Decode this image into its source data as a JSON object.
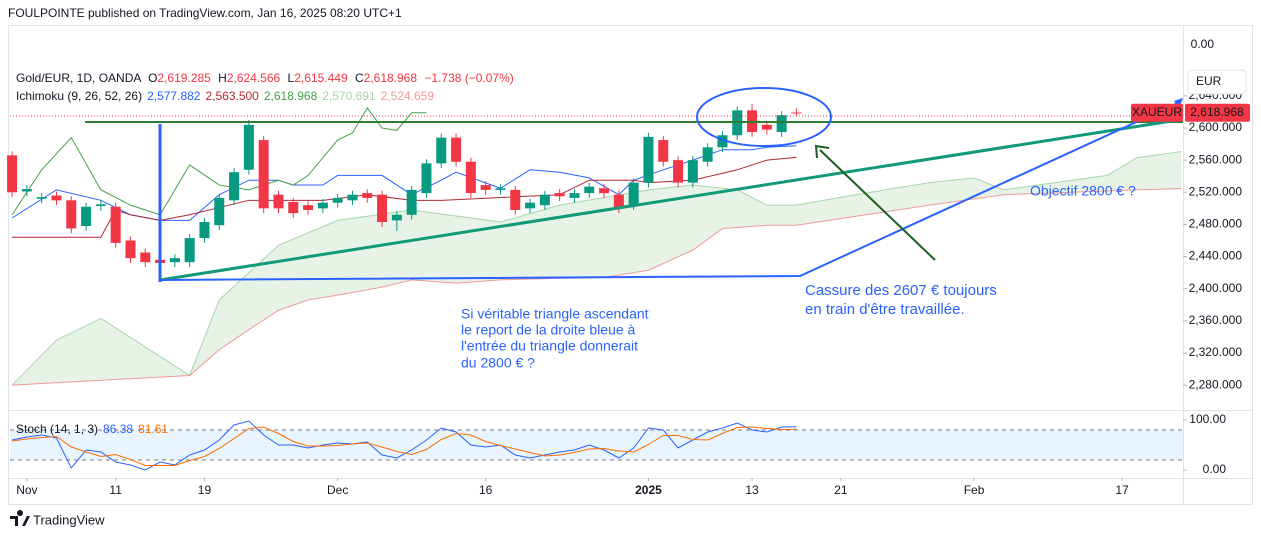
{
  "header": {
    "published": "FOULPOINTE published on TradingView.com, Jan 16, 2025 08:20 UTC+1",
    "symbol": "Gold/EUR, 1D, OANDA",
    "ohlc": [
      {
        "letter": "O",
        "value": "2,619.285"
      },
      {
        "letter": "H",
        "value": "2,624.566"
      },
      {
        "letter": "L",
        "value": "2,615.449"
      },
      {
        "letter": "C",
        "value": "2,618.968"
      }
    ],
    "change": "−1.738 (−0.07%)",
    "indicator": "Ichimoku (9, 26, 52, 26)",
    "indicator_values": [
      "2,577.882",
      "2,563.500",
      "2,618.968",
      "2,570.691",
      "2,524.659"
    ],
    "stoch": "Stoch (14, 1, 3)",
    "stoch_values": [
      "86.38",
      "81.61"
    ]
  },
  "annotations": {
    "breakout": [
      "Cassure des 2607 € toujours",
      "en train d'être travaillée."
    ],
    "triangle": [
      "Si véritable triangle ascendant",
      "le report de la droite bleue à",
      "l'entrée du triangle donnerait",
      "du 2800 € ?"
    ],
    "target": "Objectif 2800 € ?"
  },
  "footer": "TradingView",
  "chart_data": {
    "type": "candlestick",
    "up_color": "#089981",
    "down_color": "#f23645",
    "open": [
      2566,
      2521,
      2512,
      2516,
      2510,
      2478,
      2503,
      2502,
      2460,
      2445,
      2436,
      2433,
      2433,
      2463,
      2479,
      2510,
      2548,
      2585,
      2517,
      2508,
      2504,
      2500,
      2507,
      2510,
      2519,
      2517,
      2485,
      2492,
      2519,
      2556,
      2588,
      2558,
      2529,
      2523,
      2523,
      2500,
      2504,
      2519,
      2513,
      2519,
      2525,
      2517,
      2504,
      2532,
      2585,
      2560,
      2532,
      2558,
      2576,
      2591,
      2622,
      2604,
      2595,
      2619.285
    ],
    "high": [
      2571,
      2529,
      2519,
      2521,
      2515,
      2507,
      2510,
      2507,
      2465,
      2450,
      2441,
      2443,
      2468,
      2488,
      2518,
      2550,
      2610,
      2590,
      2522,
      2513,
      2509,
      2512,
      2518,
      2522,
      2524,
      2522,
      2497,
      2528,
      2561,
      2593,
      2593,
      2563,
      2534,
      2530,
      2528,
      2512,
      2522,
      2524,
      2524,
      2532,
      2530,
      2522,
      2537,
      2594,
      2590,
      2565,
      2565,
      2581,
      2596,
      2627,
      2630,
      2609,
      2621,
      2624.566
    ],
    "low": [
      2514,
      2515,
      2506,
      2504,
      2469,
      2472,
      2497,
      2451,
      2432,
      2427,
      2411,
      2427,
      2427,
      2457,
      2473,
      2504,
      2542,
      2494,
      2494,
      2488,
      2492,
      2494,
      2501,
      2504,
      2507,
      2477,
      2472,
      2486,
      2513,
      2550,
      2552,
      2513,
      2517,
      2517,
      2492,
      2494,
      2498,
      2509,
      2507,
      2513,
      2513,
      2494,
      2498,
      2526,
      2552,
      2526,
      2526,
      2552,
      2570,
      2585,
      2589,
      2592,
      2589,
      2615.449
    ],
    "close": [
      2520,
      2524,
      2514,
      2510,
      2475,
      2502,
      2505,
      2457,
      2438,
      2433,
      2432,
      2438,
      2463,
      2483,
      2513,
      2545,
      2604,
      2500,
      2500,
      2494,
      2498,
      2507,
      2513,
      2517,
      2513,
      2483,
      2492,
      2523,
      2556,
      2588,
      2558,
      2519,
      2523,
      2525,
      2498,
      2507,
      2517,
      2515,
      2519,
      2527,
      2519,
      2500,
      2532,
      2589,
      2558,
      2532,
      2560,
      2576,
      2591,
      2622,
      2595,
      2598,
      2616,
      2618.968
    ],
    "ichimoku": [
      {
        "color": "#2962ff",
        "x": [
          0,
          3,
          6,
          8,
          10,
          12,
          14,
          16,
          18,
          19,
          21,
          22,
          25,
          27,
          29,
          30,
          33,
          35,
          37,
          39,
          41,
          42,
          44,
          46,
          48,
          50,
          51,
          53
        ],
        "values": [
          2488,
          2523,
          2510,
          2492,
          2485,
          2485,
          2517,
          2535,
          2535,
          2529,
          2529,
          2541,
          2541,
          2517,
          2535,
          2545,
          2525,
          2548,
          2545,
          2538,
          2517,
          2535,
          2548,
          2560,
          2573,
          2573,
          2576,
          2577.882
        ]
      },
      {
        "color": "#b22833",
        "x": [
          0,
          6,
          7,
          8,
          10,
          12,
          16,
          21,
          24,
          27,
          29,
          37,
          39,
          42,
          43,
          46,
          49,
          51,
          53
        ],
        "values": [
          2464,
          2464,
          2498,
          2492,
          2485,
          2492,
          2510,
          2510,
          2517,
          2510,
          2510,
          2517,
          2535,
          2535,
          2532,
          2535,
          2548,
          2560,
          2563.5
        ]
      },
      {
        "color": "#43a047",
        "x": [
          0,
          2,
          4,
          6,
          8,
          10,
          12,
          14,
          16,
          18,
          19,
          20,
          22,
          23,
          24,
          25,
          26,
          27,
          28
        ],
        "values": [
          2492,
          2548,
          2588,
          2523,
          2504,
          2492,
          2554,
          2529,
          2523,
          2535,
          2529,
          2541,
          2585,
          2594,
          2625,
          2600,
          2597,
          2619,
          2618.968
        ]
      },
      {
        "color": "#a5d6a7",
        "x": [
          0,
          3,
          6,
          12,
          14,
          18,
          22,
          27,
          33,
          37,
          43,
          46,
          49,
          51,
          53,
          57,
          62,
          65,
          67,
          74,
          76,
          79
        ],
        "values": [
          2280,
          2336,
          2363,
          2292,
          2386,
          2454,
          2485,
          2498,
          2483,
          2504,
          2523,
          2529,
          2523,
          2504,
          2504,
          2517,
          2532,
          2538,
          2523,
          2541,
          2563,
          2570.691
        ]
      },
      {
        "color": "#ef9a9a",
        "x": [
          0,
          12,
          14,
          16,
          18,
          20,
          22,
          25,
          27,
          30,
          33,
          37,
          40,
          43,
          46,
          48,
          51,
          53,
          62,
          67,
          76,
          79
        ],
        "values": [
          2280,
          2292,
          2324,
          2349,
          2373,
          2386,
          2392,
          2402,
          2411,
          2407,
          2411,
          2413,
          2414,
          2423,
          2448,
          2475,
          2479,
          2479,
          2504,
          2517,
          2523,
          2524.659
        ]
      }
    ],
    "cloud_color": "rgba(67,160,71,0.13)",
    "xlim": [
      -0.14,
      79.12
    ],
    "xticks": [
      {
        "value": 1,
        "label": "Nov"
      },
      {
        "value": 7,
        "label": "11"
      },
      {
        "value": 13,
        "label": "19"
      },
      {
        "value": 22,
        "label": "Dec"
      },
      {
        "value": 32,
        "label": "16"
      },
      {
        "value": 43,
        "label": "2025"
      },
      {
        "value": 50,
        "label": "13"
      },
      {
        "value": 56,
        "label": "21"
      },
      {
        "value": 65,
        "label": "Feb"
      },
      {
        "value": 75,
        "label": "17"
      }
    ],
    "ylim": [
      2249,
      2724.5
    ],
    "yticks": [
      {
        "value": 2280,
        "label": "2,280.000"
      },
      {
        "value": 2320,
        "label": "2,320.000"
      },
      {
        "value": 2360,
        "label": "2,360.000"
      },
      {
        "value": 2400,
        "label": "2,400.000"
      },
      {
        "value": 2440,
        "label": "2,440.000"
      },
      {
        "value": 2480,
        "label": "2,480.000"
      },
      {
        "value": 2520,
        "label": "2,520.000"
      },
      {
        "value": 2560,
        "label": "2,560.000"
      },
      {
        "value": 2600,
        "label": "2,600.000"
      },
      {
        "value": 2640,
        "label": "2,640.000"
      }
    ],
    "grid": false,
    "top_label": "0.00",
    "currency": "EUR",
    "symbol_tag": "XAUEUR",
    "last_price": {
      "value": 2618.968,
      "label": "2,618.968"
    },
    "stoch": {
      "ylim": [
        -16,
        116
      ],
      "yticks": [
        {
          "value": 100,
          "label": "100.00"
        },
        {
          "value": 0,
          "label": "0.00"
        }
      ],
      "band": [
        20,
        80
      ],
      "band_color": "rgba(33,150,243,0.1)",
      "series": [
        {
          "color": "#2962ff",
          "values": [
            60,
            66,
            70,
            64,
            4,
            40,
            36,
            16,
            10,
            0,
            16,
            10,
            30,
            40,
            60,
            90,
            98,
            70,
            50,
            50,
            44,
            50,
            54,
            52,
            56,
            30,
            24,
            40,
            60,
            84,
            76,
            50,
            46,
            50,
            30,
            24,
            30,
            36,
            40,
            50,
            40,
            24,
            44,
            84,
            80,
            44,
            60,
            76,
            84,
            94,
            80,
            76,
            86,
            86.38
          ]
        },
        {
          "color": "#ff6d00",
          "values": [
            58,
            62,
            65,
            67,
            46,
            36,
            27,
            31,
            21,
            9,
            9,
            9,
            19,
            27,
            43,
            63,
            83,
            86,
            73,
            57,
            48,
            48,
            49,
            52,
            54,
            46,
            37,
            31,
            41,
            61,
            73,
            70,
            57,
            49,
            42,
            35,
            28,
            30,
            35,
            42,
            43,
            38,
            36,
            51,
            69,
            69,
            61,
            60,
            73,
            85,
            86,
            83,
            81,
            81.61
          ]
        }
      ]
    }
  }
}
